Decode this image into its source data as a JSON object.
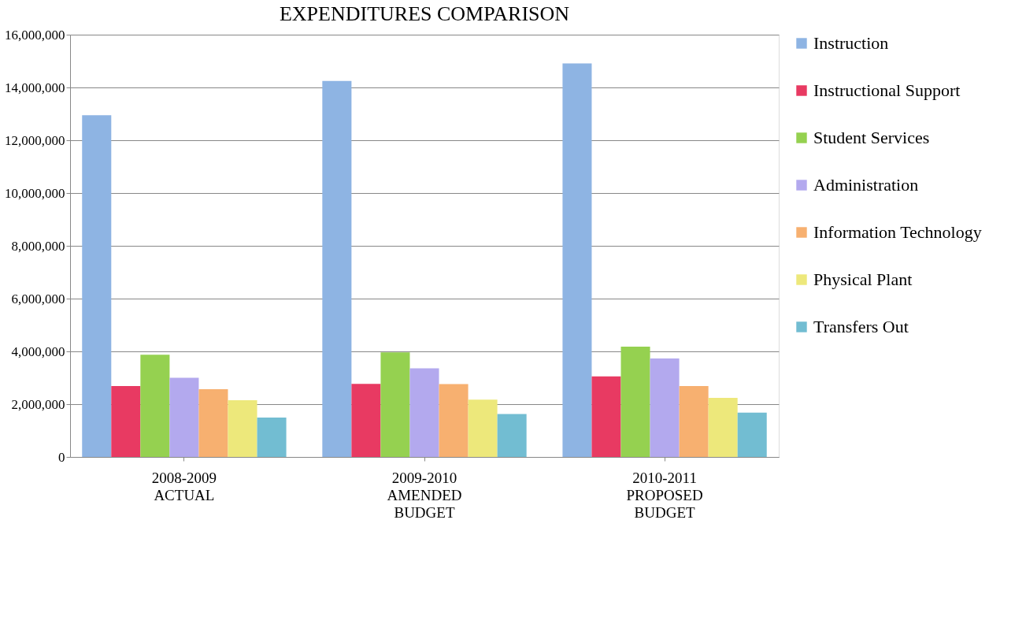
{
  "chart_data": {
    "type": "bar",
    "title": "EXPENDITURES COMPARISON",
    "categories": [
      "2008-2009 ACTUAL",
      "2009-2010 AMENDED BUDGET",
      "2010-2011 PROPOSED BUDGET"
    ],
    "series": [
      {
        "name": "Instruction",
        "color": "#8eb4e3",
        "values": [
          12950000,
          14250000,
          14910000
        ]
      },
      {
        "name": "Instructional Support",
        "color": "#e83a62",
        "values": [
          2690000,
          2770000,
          3050000
        ]
      },
      {
        "name": "Student Services",
        "color": "#95d150",
        "values": [
          3870000,
          3960000,
          4180000
        ]
      },
      {
        "name": "Administration",
        "color": "#b3a9ee",
        "values": [
          3000000,
          3360000,
          3730000
        ]
      },
      {
        "name": "Information Technology",
        "color": "#f7b070",
        "values": [
          2570000,
          2760000,
          2690000
        ]
      },
      {
        "name": "Physical Plant",
        "color": "#ede87b",
        "values": [
          2150000,
          2170000,
          2240000
        ]
      },
      {
        "name": "Transfers Out",
        "color": "#72bdd2",
        "values": [
          1490000,
          1630000,
          1680000
        ]
      }
    ],
    "ylim": [
      0,
      16000000
    ],
    "yticks": [
      {
        "value": 0,
        "label": "0"
      },
      {
        "value": 2000000,
        "label": "2,000,000"
      },
      {
        "value": 4000000,
        "label": "4,000,000"
      },
      {
        "value": 6000000,
        "label": "6,000,000"
      },
      {
        "value": 8000000,
        "label": "8,000,000"
      },
      {
        "value": 10000000,
        "label": "10,000,000"
      },
      {
        "value": 12000000,
        "label": "12,000,000"
      },
      {
        "value": 14000000,
        "label": "14,000,000"
      },
      {
        "value": 16000000,
        "label": "16,000,000"
      }
    ],
    "grid": "y",
    "legend": "right"
  }
}
